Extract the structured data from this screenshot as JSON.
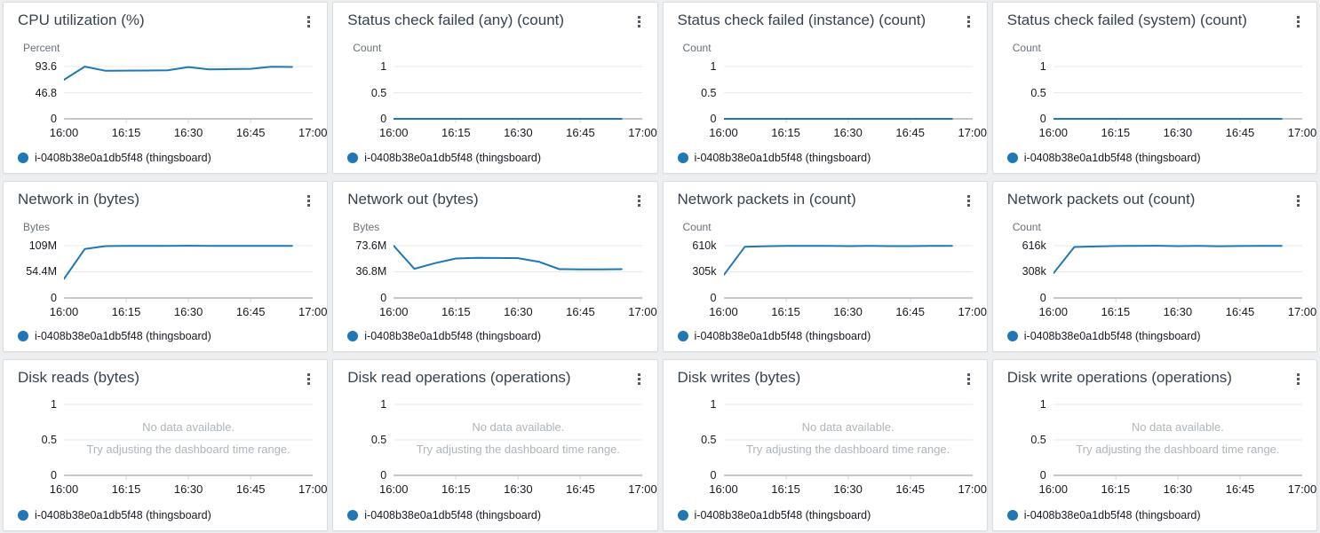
{
  "dashboard": {
    "x_axis_ticks": [
      "16:00",
      "16:15",
      "16:30",
      "16:45",
      "17:00"
    ],
    "legend": {
      "series_label": "i-0408b38e0a1db5f48 (thingsboard)",
      "series_color": "#1f77b4"
    },
    "no_data": {
      "line1": "No data available.",
      "line2": "Try adjusting the dashboard time range."
    },
    "menu_icon": "kebab-vertical-dots-icon",
    "cards": [
      {
        "title": "CPU utilization (%)",
        "unit": "Percent",
        "y_ticks": [
          "93.6",
          "46.8",
          "0"
        ],
        "y_tick_values": [
          93.6,
          46.8,
          0
        ],
        "no_data": false,
        "series": {
          "type": "line",
          "x_minutes": [
            0,
            5,
            10,
            15,
            20,
            25,
            30,
            35,
            40,
            45,
            50,
            55
          ],
          "values": [
            70,
            93.5,
            86,
            86.3,
            86.4,
            87,
            92.6,
            88.4,
            89,
            89.5,
            93.2,
            92.8
          ]
        }
      },
      {
        "title": "Status check failed (any) (count)",
        "unit": "Count",
        "y_ticks": [
          "1",
          "0.5",
          "0"
        ],
        "y_tick_values": [
          1,
          0.5,
          0
        ],
        "no_data": false,
        "series": {
          "type": "line",
          "x_minutes": [
            0,
            5,
            10,
            15,
            20,
            25,
            30,
            35,
            40,
            45,
            50,
            55
          ],
          "values": [
            0,
            0,
            0,
            0,
            0,
            0,
            0,
            0,
            0,
            0,
            0,
            0
          ]
        }
      },
      {
        "title": "Status check failed (instance) (count)",
        "unit": "Count",
        "y_ticks": [
          "1",
          "0.5",
          "0"
        ],
        "y_tick_values": [
          1,
          0.5,
          0
        ],
        "no_data": false,
        "series": {
          "type": "line",
          "x_minutes": [
            0,
            5,
            10,
            15,
            20,
            25,
            30,
            35,
            40,
            45,
            50,
            55
          ],
          "values": [
            0,
            0,
            0,
            0,
            0,
            0,
            0,
            0,
            0,
            0,
            0,
            0
          ]
        }
      },
      {
        "title": "Status check failed (system) (count)",
        "unit": "Count",
        "y_ticks": [
          "1",
          "0.5",
          "0"
        ],
        "y_tick_values": [
          1,
          0.5,
          0
        ],
        "no_data": false,
        "series": {
          "type": "line",
          "x_minutes": [
            0,
            5,
            10,
            15,
            20,
            25,
            30,
            35,
            40,
            45,
            50,
            55
          ],
          "values": [
            0,
            0,
            0,
            0,
            0,
            0,
            0,
            0,
            0,
            0,
            0,
            0
          ]
        }
      },
      {
        "title": "Network in (bytes)",
        "unit": "Bytes",
        "y_ticks": [
          "109M",
          "54.4M",
          "0"
        ],
        "y_tick_values": [
          109,
          54.4,
          0
        ],
        "no_data": false,
        "series": {
          "type": "line",
          "x_minutes": [
            0,
            5,
            10,
            15,
            20,
            25,
            30,
            35,
            40,
            45,
            50,
            55
          ],
          "values": [
            40,
            102,
            108,
            108.6,
            108.6,
            108.7,
            108.9,
            108.6,
            108.4,
            108.5,
            108.7,
            108.7
          ]
        }
      },
      {
        "title": "Network out (bytes)",
        "unit": "Bytes",
        "y_ticks": [
          "73.6M",
          "36.8M",
          "0"
        ],
        "y_tick_values": [
          73.6,
          36.8,
          0
        ],
        "no_data": false,
        "series": {
          "type": "line",
          "x_minutes": [
            0,
            5,
            10,
            15,
            20,
            25,
            30,
            35,
            40,
            45,
            50,
            55
          ],
          "values": [
            73.6,
            41,
            49,
            55.5,
            56.5,
            56.3,
            56,
            51,
            40.5,
            40.3,
            40.3,
            40.6
          ]
        }
      },
      {
        "title": "Network packets in (count)",
        "unit": "Count",
        "y_ticks": [
          "610k",
          "305k",
          "0"
        ],
        "y_tick_values": [
          610,
          305,
          0
        ],
        "no_data": false,
        "series": {
          "type": "line",
          "x_minutes": [
            0,
            5,
            10,
            15,
            20,
            25,
            30,
            35,
            40,
            45,
            50,
            55
          ],
          "values": [
            272,
            597,
            604,
            607,
            608,
            608,
            605,
            607,
            605,
            605,
            607,
            607
          ]
        }
      },
      {
        "title": "Network packets out (count)",
        "unit": "Count",
        "y_ticks": [
          "616k",
          "308k",
          "0"
        ],
        "y_tick_values": [
          616,
          308,
          0
        ],
        "no_data": false,
        "series": {
          "type": "line",
          "x_minutes": [
            0,
            5,
            10,
            15,
            20,
            25,
            30,
            35,
            40,
            45,
            50,
            55
          ],
          "values": [
            293,
            600,
            607,
            612,
            614,
            615,
            611,
            613,
            610,
            612,
            613,
            613
          ]
        }
      },
      {
        "title": "Disk reads (bytes)",
        "unit": "",
        "y_ticks": [
          "1",
          "0.5",
          "0"
        ],
        "y_tick_values": [
          1,
          0.5,
          0
        ],
        "no_data": true,
        "series": null
      },
      {
        "title": "Disk read operations (operations)",
        "unit": "",
        "y_ticks": [
          "1",
          "0.5",
          "0"
        ],
        "y_tick_values": [
          1,
          0.5,
          0
        ],
        "no_data": true,
        "series": null
      },
      {
        "title": "Disk writes (bytes)",
        "unit": "",
        "y_ticks": [
          "1",
          "0.5",
          "0"
        ],
        "y_tick_values": [
          1,
          0.5,
          0
        ],
        "no_data": true,
        "series": null
      },
      {
        "title": "Disk write operations (operations)",
        "unit": "",
        "y_ticks": [
          "1",
          "0.5",
          "0"
        ],
        "y_tick_values": [
          1,
          0.5,
          0
        ],
        "no_data": true,
        "series": null
      }
    ]
  }
}
